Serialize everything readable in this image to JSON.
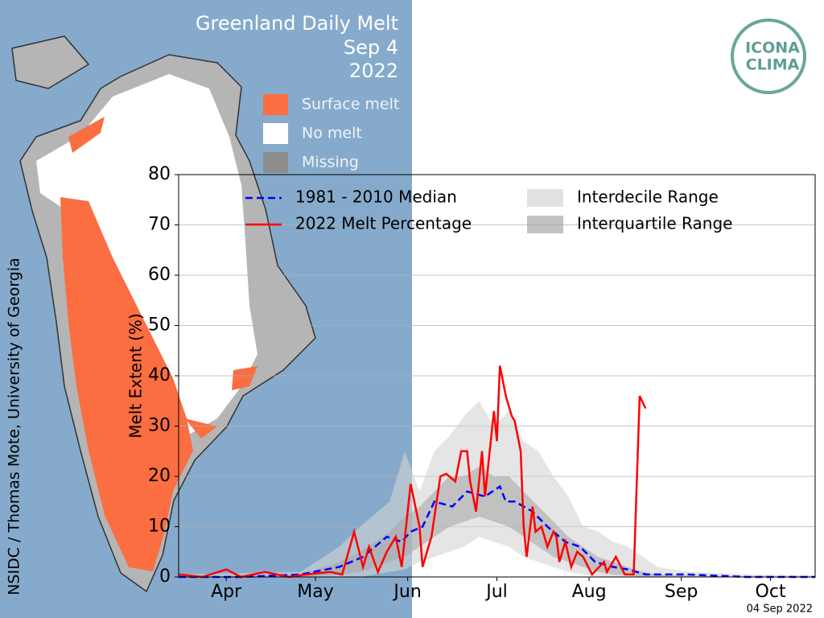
{
  "header": {
    "title": "Greenland Daily Melt",
    "date": "Sep 4",
    "year": "2022"
  },
  "map_legend": [
    {
      "label": "Surface melt",
      "color": "#fa6e42"
    },
    {
      "label": "No melt",
      "color": "#ffffff"
    },
    {
      "label": "Missing",
      "color": "#8c8c8c"
    }
  ],
  "credit": "NSIDC / Thomas Mote, University of Georgia",
  "stamp": "04 Sep 2022",
  "logo": [
    "ICONA",
    "CLIMA"
  ],
  "chart_data": {
    "type": "line",
    "y_label": "Melt Extent (%)",
    "xlim": [
      89,
      303
    ],
    "xticks": [
      {
        "value": 105,
        "label": "Apr"
      },
      {
        "value": 135,
        "label": "May"
      },
      {
        "value": 166,
        "label": "Jun"
      },
      {
        "value": 196,
        "label": "Jul"
      },
      {
        "value": 227,
        "label": "Aug"
      },
      {
        "value": 258,
        "label": "Sep"
      },
      {
        "value": 288,
        "label": "Oct"
      }
    ],
    "ylim": [
      0,
      80
    ],
    "yticks": [
      0,
      10,
      20,
      30,
      40,
      50,
      60,
      70,
      80
    ],
    "grid": true,
    "series": [
      {
        "name": "1981 - 2010 Median",
        "color": "#0000ff",
        "dashed": true,
        "x": [
          89,
          110,
          130,
          143,
          151,
          159,
          164,
          167,
          171,
          175,
          181,
          186,
          192,
          197,
          199,
          202,
          208,
          213,
          219,
          224,
          229,
          235,
          240,
          246,
          260,
          280,
          303
        ],
        "values": [
          0,
          0,
          0.5,
          2,
          4,
          8,
          7,
          9,
          10,
          15,
          14,
          17,
          16,
          18,
          15,
          15,
          13,
          10,
          7,
          6,
          3,
          2,
          1.5,
          0.5,
          0.5,
          0,
          0
        ]
      },
      {
        "name": "2022 Melt Percentage",
        "color": "#ff0000",
        "x": [
          89,
          97,
          105,
          110,
          118,
          126,
          132,
          140,
          144,
          148,
          151,
          153,
          156,
          159,
          162,
          164,
          167,
          170,
          171,
          174,
          177,
          179,
          182,
          184,
          186,
          187,
          189,
          191,
          192,
          195,
          196,
          197,
          199,
          201,
          202,
          204,
          205,
          206,
          208,
          209,
          211,
          213,
          215,
          216,
          217,
          219,
          221,
          223,
          225,
          228,
          232,
          233,
          236,
          239,
          242,
          244,
          246
        ],
        "values": [
          0.5,
          0,
          1.5,
          0,
          1,
          0,
          0.5,
          1,
          0.5,
          9,
          2,
          6,
          1,
          5,
          8,
          2,
          18.5,
          10,
          2,
          8,
          20,
          20.5,
          19,
          25,
          25,
          19,
          13,
          25,
          16,
          33,
          27,
          42,
          36,
          32,
          31,
          25,
          10,
          4,
          14,
          9,
          10,
          6,
          9,
          8,
          3,
          7,
          2,
          5,
          4,
          0.5,
          3,
          1,
          4,
          0.5,
          0.5,
          36,
          33.5
        ]
      },
      {
        "name": "Interdecile Range",
        "color": "#d4d4d4",
        "band": true,
        "x": [
          89,
          130,
          143,
          150,
          160,
          165,
          170,
          175,
          180,
          185,
          190,
          195,
          200,
          205,
          210,
          215,
          220,
          225,
          230,
          235,
          240,
          245,
          250,
          260,
          280,
          303
        ],
        "values": [
          0.5,
          1,
          6,
          10,
          15,
          25,
          17,
          25,
          28,
          32,
          35,
          30,
          33,
          27,
          25,
          20,
          16,
          10,
          9,
          7,
          6,
          4,
          2,
          1,
          0.5,
          0.3
        ],
        "lower": [
          0,
          0,
          0,
          0,
          1,
          1.5,
          3,
          4,
          5,
          6,
          8,
          7,
          6,
          4,
          3,
          2,
          1,
          0.5,
          0,
          0,
          0,
          0,
          0,
          0,
          0,
          0
        ]
      },
      {
        "name": "Interquartile Range",
        "color": "#a8a8a8",
        "band": true,
        "x": [
          89,
          130,
          143,
          150,
          160,
          165,
          170,
          175,
          180,
          185,
          190,
          195,
          200,
          205,
          210,
          215,
          220,
          225,
          230,
          235,
          240,
          245,
          250,
          260,
          280,
          303
        ],
        "values": [
          0,
          0.5,
          3,
          5,
          9,
          12,
          14,
          17,
          20,
          20,
          22,
          20,
          20,
          17,
          14,
          11,
          8,
          6,
          4,
          3,
          2,
          1,
          0.5,
          0.3,
          0,
          0
        ],
        "lower": [
          0,
          0,
          0.5,
          1,
          3,
          4,
          6,
          8,
          10,
          11,
          12,
          11,
          10,
          8,
          6,
          4,
          3,
          2,
          1,
          0.5,
          0.3,
          0,
          0,
          0,
          0,
          0
        ]
      }
    ]
  }
}
